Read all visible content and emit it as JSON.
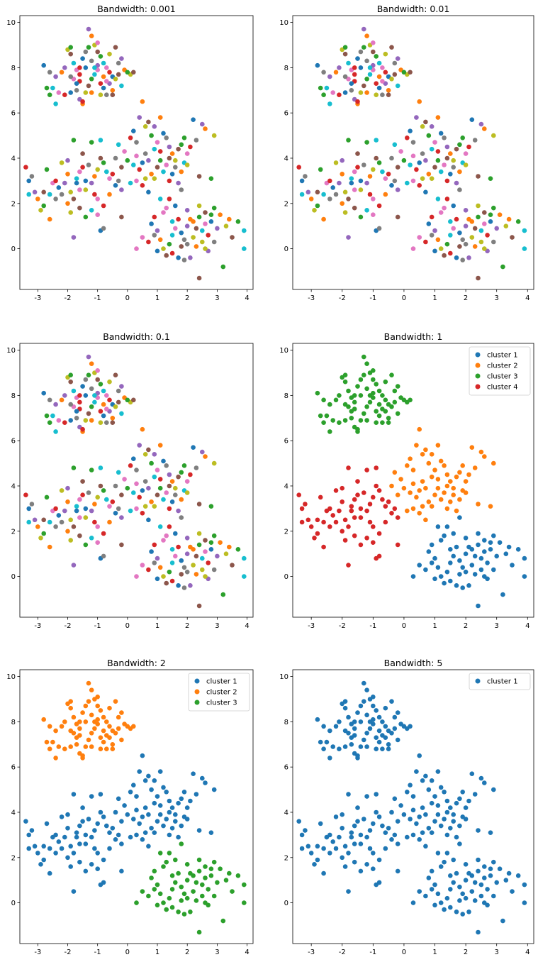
{
  "palette": [
    "#1f77b4",
    "#ff7f0e",
    "#2ca02c",
    "#d62728",
    "#9467bd",
    "#8c564b",
    "#e377c2",
    "#7f7f7f",
    "#bcbd22",
    "#17becf"
  ],
  "chart_data": [
    {
      "type": "scatter",
      "title": "Bandwidth: 0.001",
      "xlim": [
        -3.6,
        4.2
      ],
      "ylim": [
        -1.8,
        10.3
      ],
      "xticks": [
        -3,
        -2,
        -1,
        0,
        1,
        2,
        3,
        4
      ],
      "yticks": [
        0,
        2,
        4,
        6,
        8,
        10
      ],
      "mode": "multicolor",
      "legend": [],
      "grid": false
    },
    {
      "type": "scatter",
      "title": "Bandwidth: 0.01",
      "xlim": [
        -3.6,
        4.2
      ],
      "ylim": [
        -1.8,
        10.3
      ],
      "xticks": [
        -3,
        -2,
        -1,
        0,
        1,
        2,
        3,
        4
      ],
      "yticks": [
        0,
        2,
        4,
        6,
        8,
        10
      ],
      "mode": "multicolor",
      "legend": [],
      "grid": false
    },
    {
      "type": "scatter",
      "title": "Bandwidth: 0.1",
      "xlim": [
        -3.6,
        4.2
      ],
      "ylim": [
        -1.8,
        10.3
      ],
      "xticks": [
        -3,
        -2,
        -1,
        0,
        1,
        2,
        3,
        4
      ],
      "yticks": [
        0,
        2,
        4,
        6,
        8,
        10
      ],
      "mode": "multicolor",
      "legend": [],
      "grid": false
    },
    {
      "type": "scatter",
      "title": "Bandwidth: 1",
      "xlim": [
        -3.6,
        4.2
      ],
      "ylim": [
        -1.8,
        10.3
      ],
      "xticks": [
        -3,
        -2,
        -1,
        0,
        1,
        2,
        3,
        4
      ],
      "yticks": [
        0,
        2,
        4,
        6,
        8,
        10
      ],
      "mode": "clusters4",
      "legend": [
        "cluster 1",
        "cluster 2",
        "cluster 3",
        "cluster 4"
      ],
      "legend_loc": "top-right",
      "grid": false
    },
    {
      "type": "scatter",
      "title": "Bandwidth: 2",
      "xlim": [
        -3.6,
        4.2
      ],
      "ylim": [
        -1.8,
        10.3
      ],
      "xticks": [
        -3,
        -2,
        -1,
        0,
        1,
        2,
        3,
        4
      ],
      "yticks": [
        0,
        2,
        4,
        6,
        8,
        10
      ],
      "mode": "clusters3",
      "legend": [
        "cluster 1",
        "cluster 2",
        "cluster 3"
      ],
      "legend_loc": "top-right",
      "grid": false
    },
    {
      "type": "scatter",
      "title": "Bandwidth: 5",
      "xlim": [
        -3.6,
        4.2
      ],
      "ylim": [
        -1.8,
        10.3
      ],
      "xticks": [
        -3,
        -2,
        -1,
        0,
        1,
        2,
        3,
        4
      ],
      "yticks": [
        0,
        2,
        4,
        6,
        8,
        10
      ],
      "mode": "clusters1",
      "legend": [
        "cluster 1"
      ],
      "legend_loc": "top-right",
      "grid": false
    }
  ],
  "points": {
    "blob_A_top": [
      [
        -2.8,
        8.1
      ],
      [
        -2.6,
        7.8
      ],
      [
        -2.4,
        7.6
      ],
      [
        -2.2,
        7.8
      ],
      [
        -2.0,
        8.8
      ],
      [
        -1.9,
        8.6
      ],
      [
        -1.9,
        8.9
      ],
      [
        -1.8,
        8.2
      ],
      [
        -1.7,
        7.9
      ],
      [
        -1.6,
        7.4
      ],
      [
        -1.5,
        8.4
      ],
      [
        -1.4,
        8.7
      ],
      [
        -1.3,
        9.7
      ],
      [
        -1.2,
        9.4
      ],
      [
        -1.1,
        9.0
      ],
      [
        -1.0,
        8.7
      ],
      [
        -0.9,
        8.5
      ],
      [
        -0.8,
        8.2
      ],
      [
        -0.7,
        8.0
      ],
      [
        -0.6,
        7.8
      ],
      [
        -0.5,
        7.6
      ],
      [
        -0.3,
        8.2
      ],
      [
        -0.2,
        8.4
      ],
      [
        -0.1,
        7.9
      ],
      [
        0.1,
        7.7
      ],
      [
        0.2,
        7.8
      ],
      [
        -2.7,
        7.1
      ],
      [
        -2.5,
        7.1
      ],
      [
        -2.3,
        6.9
      ],
      [
        -2.1,
        6.8
      ],
      [
        -1.9,
        6.9
      ],
      [
        -1.7,
        7.0
      ],
      [
        -1.6,
        6.6
      ],
      [
        -1.5,
        6.4
      ],
      [
        -1.4,
        6.9
      ],
      [
        -1.3,
        7.2
      ],
      [
        -1.2,
        7.5
      ],
      [
        -1.1,
        7.7
      ],
      [
        -1.0,
        7.9
      ],
      [
        -0.9,
        7.3
      ],
      [
        -0.8,
        7.1
      ],
      [
        -0.7,
        6.8
      ],
      [
        -0.6,
        7.3
      ],
      [
        -0.5,
        7.0
      ],
      [
        -0.4,
        7.5
      ],
      [
        -0.3,
        7.7
      ],
      [
        -2.6,
        6.8
      ],
      [
        -2.4,
        6.4
      ],
      [
        -1.8,
        7.5
      ],
      [
        -1.6,
        7.7
      ],
      [
        -1.4,
        8.0
      ],
      [
        -1.2,
        8.3
      ],
      [
        -1.0,
        8.1
      ],
      [
        -0.8,
        7.6
      ],
      [
        -0.6,
        8.6
      ],
      [
        -0.4,
        8.9
      ],
      [
        -1.3,
        8.9
      ],
      [
        -1.1,
        8.0
      ],
      [
        -0.7,
        7.4
      ],
      [
        -1.5,
        6.5
      ],
      [
        -1.7,
        7.3
      ],
      [
        -1.9,
        7.6
      ],
      [
        -2.1,
        8.0
      ],
      [
        -1.2,
        6.9
      ],
      [
        -0.9,
        6.8
      ],
      [
        -0.5,
        6.8
      ],
      [
        0.0,
        7.8
      ],
      [
        -0.2,
        7.2
      ],
      [
        -1.0,
        9.1
      ],
      [
        -1.6,
        8.0
      ]
    ],
    "blob_B_center": [
      [
        -0.3,
        4.6
      ],
      [
        -0.1,
        4.3
      ],
      [
        0.1,
        4.9
      ],
      [
        0.2,
        5.2
      ],
      [
        0.3,
        4.7
      ],
      [
        0.4,
        5.8
      ],
      [
        0.5,
        6.5
      ],
      [
        0.6,
        5.4
      ],
      [
        0.7,
        5.6
      ],
      [
        0.8,
        5.0
      ],
      [
        0.9,
        4.4
      ],
      [
        1.0,
        4.7
      ],
      [
        1.1,
        4.3
      ],
      [
        1.2,
        5.1
      ],
      [
        1.3,
        4.9
      ],
      [
        1.4,
        4.5
      ],
      [
        1.5,
        4.2
      ],
      [
        1.6,
        3.9
      ],
      [
        1.7,
        4.4
      ],
      [
        1.8,
        4.6
      ],
      [
        1.9,
        3.8
      ],
      [
        2.0,
        4.2
      ],
      [
        2.1,
        4.5
      ],
      [
        2.2,
        5.7
      ],
      [
        2.3,
        4.8
      ],
      [
        2.5,
        5.5
      ],
      [
        2.6,
        5.3
      ],
      [
        2.9,
        5.0
      ],
      [
        -0.2,
        3.6
      ],
      [
        0.0,
        3.9
      ],
      [
        0.2,
        3.7
      ],
      [
        0.3,
        4.1
      ],
      [
        0.4,
        3.5
      ],
      [
        0.5,
        3.8
      ],
      [
        0.6,
        4.2
      ],
      [
        0.7,
        3.9
      ],
      [
        0.8,
        3.3
      ],
      [
        0.9,
        3.1
      ],
      [
        1.0,
        3.6
      ],
      [
        1.1,
        3.9
      ],
      [
        1.2,
        3.4
      ],
      [
        1.3,
        3.7
      ],
      [
        1.4,
        3.0
      ],
      [
        1.5,
        3.3
      ],
      [
        1.6,
        3.6
      ],
      [
        1.7,
        2.9
      ],
      [
        1.8,
        3.4
      ],
      [
        2.0,
        3.7
      ],
      [
        2.4,
        3.2
      ],
      [
        2.8,
        3.1
      ],
      [
        0.1,
        2.9
      ],
      [
        0.3,
        3.0
      ],
      [
        0.5,
        2.8
      ],
      [
        0.7,
        2.5
      ],
      [
        -0.4,
        4.0
      ],
      [
        0.9,
        5.4
      ],
      [
        1.1,
        5.8
      ],
      [
        0.6,
        3.1
      ],
      [
        1.4,
        4.0
      ],
      [
        1.9,
        4.9
      ]
    ],
    "blob_C_left": [
      [
        -3.4,
        3.6
      ],
      [
        -3.3,
        3.0
      ],
      [
        -3.2,
        3.2
      ],
      [
        -3.1,
        2.5
      ],
      [
        -3.0,
        2.2
      ],
      [
        -2.9,
        1.7
      ],
      [
        -2.8,
        2.5
      ],
      [
        -2.7,
        3.5
      ],
      [
        -2.6,
        2.4
      ],
      [
        -2.5,
        2.9
      ],
      [
        -2.4,
        3.0
      ],
      [
        -2.3,
        2.7
      ],
      [
        -2.2,
        2.4
      ],
      [
        -2.1,
        2.9
      ],
      [
        -2.0,
        3.3
      ],
      [
        -1.9,
        2.5
      ],
      [
        -1.8,
        2.2
      ],
      [
        -1.8,
        4.8
      ],
      [
        -1.7,
        3.1
      ],
      [
        -1.6,
        2.6
      ],
      [
        -1.5,
        3.6
      ],
      [
        -1.4,
        3.0
      ],
      [
        -1.3,
        3.7
      ],
      [
        -1.2,
        2.9
      ],
      [
        -1.1,
        3.2
      ],
      [
        -1.0,
        3.5
      ],
      [
        -0.9,
        4.0
      ],
      [
        -0.8,
        3.8
      ],
      [
        -0.7,
        3.4
      ],
      [
        -0.6,
        3.1
      ],
      [
        -0.5,
        3.3
      ],
      [
        -0.4,
        2.8
      ],
      [
        -0.3,
        3.0
      ],
      [
        -0.2,
        2.6
      ],
      [
        -2.0,
        2.0
      ],
      [
        -1.9,
        1.6
      ],
      [
        -1.6,
        1.8
      ],
      [
        -1.4,
        1.4
      ],
      [
        -1.2,
        1.7
      ],
      [
        -1.0,
        2.2
      ],
      [
        -0.8,
        1.9
      ],
      [
        -0.9,
        0.8
      ],
      [
        -0.8,
        0.9
      ],
      [
        -1.8,
        0.5
      ],
      [
        -2.6,
        1.3
      ],
      [
        -2.2,
        3.8
      ],
      [
        -1.5,
        4.2
      ],
      [
        -1.2,
        4.7
      ],
      [
        -0.9,
        4.8
      ],
      [
        -1.6,
        3.4
      ],
      [
        -1.1,
        2.4
      ],
      [
        -1.7,
        2.9
      ],
      [
        -2.4,
        2.2
      ],
      [
        -2.0,
        3.9
      ],
      [
        -0.6,
        2.4
      ],
      [
        -1.4,
        2.6
      ],
      [
        -0.2,
        1.4
      ],
      [
        -2.8,
        1.9
      ],
      [
        -3.3,
        2.4
      ],
      [
        -1.0,
        1.5
      ]
    ],
    "blob_D_right": [
      [
        0.5,
        0.5
      ],
      [
        0.7,
        0.3
      ],
      [
        0.8,
        1.1
      ],
      [
        0.9,
        0.6
      ],
      [
        1.0,
        0.8
      ],
      [
        1.1,
        0.4
      ],
      [
        1.2,
        0.0
      ],
      [
        1.3,
        -0.3
      ],
      [
        1.4,
        0.2
      ],
      [
        1.5,
        0.6
      ],
      [
        1.6,
        0.9
      ],
      [
        1.7,
        1.3
      ],
      [
        1.8,
        0.7
      ],
      [
        1.9,
        0.4
      ],
      [
        2.0,
        1.0
      ],
      [
        2.1,
        1.3
      ],
      [
        2.2,
        0.5
      ],
      [
        2.3,
        0.9
      ],
      [
        2.4,
        1.4
      ],
      [
        2.5,
        0.8
      ],
      [
        2.6,
        1.1
      ],
      [
        2.7,
        0.6
      ],
      [
        2.8,
        1.2
      ],
      [
        2.9,
        0.3
      ],
      [
        3.0,
        0.9
      ],
      [
        3.1,
        1.5
      ],
      [
        3.3,
        1.0
      ],
      [
        3.5,
        0.5
      ],
      [
        3.7,
        1.2
      ],
      [
        3.9,
        0.8
      ],
      [
        1.2,
        1.6
      ],
      [
        1.4,
        2.2
      ],
      [
        1.6,
        1.9
      ],
      [
        1.8,
        2.6
      ],
      [
        2.0,
        1.7
      ],
      [
        2.2,
        1.2
      ],
      [
        2.4,
        1.9
      ],
      [
        2.6,
        1.6
      ],
      [
        2.8,
        1.5
      ],
      [
        1.1,
        2.2
      ],
      [
        1.3,
        1.8
      ],
      [
        1.5,
        -0.2
      ],
      [
        1.7,
        -0.4
      ],
      [
        1.9,
        -0.5
      ],
      [
        2.1,
        -0.4
      ],
      [
        2.3,
        0.1
      ],
      [
        2.5,
        0.3
      ],
      [
        2.4,
        -1.3
      ],
      [
        3.2,
        -0.8
      ],
      [
        3.9,
        0.0
      ],
      [
        0.3,
        0.0
      ],
      [
        0.9,
        1.4
      ],
      [
        1.0,
        -0.1
      ],
      [
        2.0,
        0.2
      ],
      [
        2.7,
        -0.1
      ],
      [
        3.4,
        1.3
      ],
      [
        2.6,
        0.0
      ],
      [
        1.8,
        0.1
      ],
      [
        2.9,
        1.8
      ],
      [
        1.5,
        1.2
      ]
    ]
  }
}
